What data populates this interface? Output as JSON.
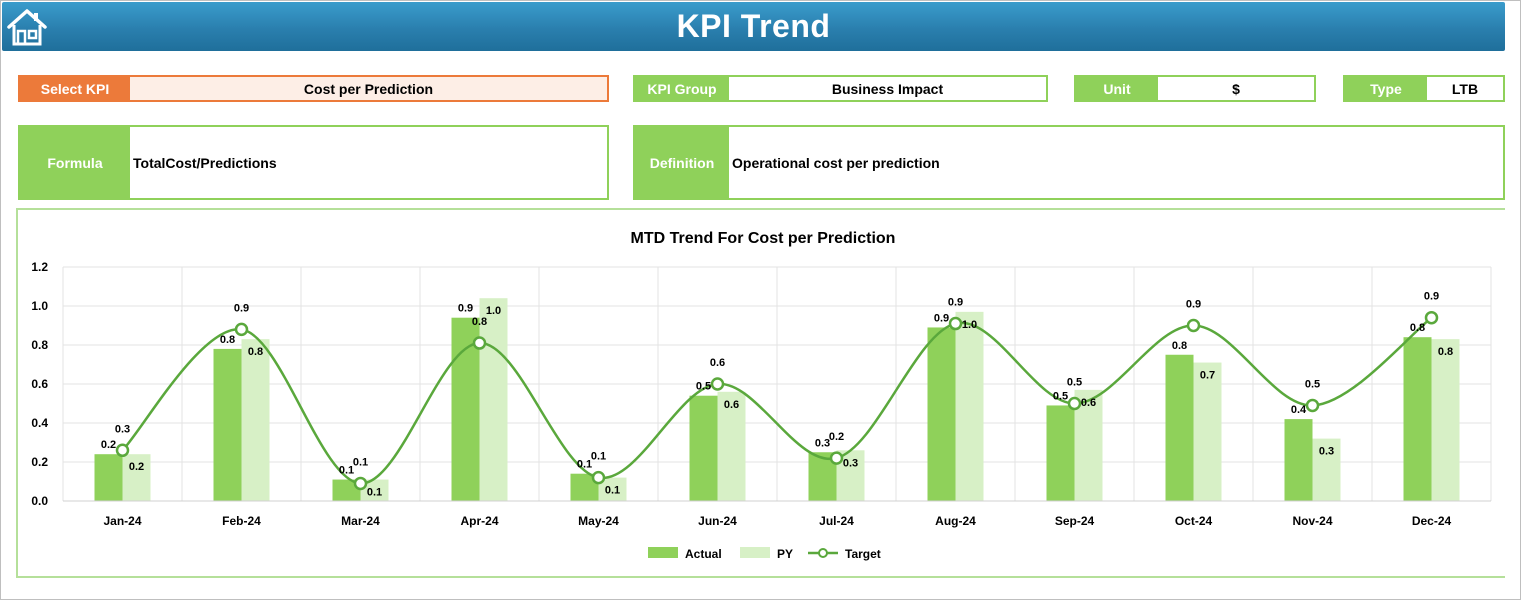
{
  "header": {
    "title": "KPI Trend",
    "home_icon": "home-icon"
  },
  "fields": {
    "select_kpi": {
      "label": "Select KPI",
      "value": "Cost per Prediction"
    },
    "kpi_group": {
      "label": "KPI Group",
      "value": "Business Impact"
    },
    "unit": {
      "label": "Unit",
      "value": "$"
    },
    "type": {
      "label": "Type",
      "value": "LTB"
    },
    "formula": {
      "label": "Formula",
      "value": "TotalCost/Predictions"
    },
    "definition": {
      "label": "Definition",
      "value": "Operational cost per prediction"
    }
  },
  "colors": {
    "accent": "#8fd15a",
    "select": "#ec7a3a",
    "header": "#2a7fae",
    "actual": "#8fd15a",
    "py": "#d7f0c6",
    "target": "#5aa83c"
  },
  "chart_data": {
    "type": "bar",
    "title": "MTD Trend For Cost per Prediction",
    "categories": [
      "Jan-24",
      "Feb-24",
      "Mar-24",
      "Apr-24",
      "May-24",
      "Jun-24",
      "Jul-24",
      "Aug-24",
      "Sep-24",
      "Oct-24",
      "Nov-24",
      "Dec-24"
    ],
    "series": [
      {
        "name": "Actual",
        "values": [
          0.24,
          0.78,
          0.11,
          0.94,
          0.14,
          0.54,
          0.25,
          0.89,
          0.49,
          0.75,
          0.42,
          0.84
        ]
      },
      {
        "name": "PY",
        "values": [
          0.24,
          0.83,
          0.11,
          1.04,
          0.12,
          0.56,
          0.26,
          0.97,
          0.57,
          0.71,
          0.32,
          0.83
        ]
      },
      {
        "name": "Target",
        "type": "line",
        "values": [
          0.26,
          0.88,
          0.09,
          0.81,
          0.12,
          0.6,
          0.22,
          0.91,
          0.5,
          0.9,
          0.49,
          0.94
        ]
      }
    ],
    "labels": {
      "Actual": [
        "0.2",
        "0.8",
        "0.1",
        "0.9",
        "0.1",
        "0.5",
        "0.3",
        "0.9",
        "0.5",
        "0.8",
        "0.4",
        "0.8"
      ],
      "PY": [
        "0.2",
        "0.8",
        "0.1",
        "1.0",
        "0.1",
        "0.6",
        "0.3",
        "1.0",
        "0.6",
        "0.7",
        "0.3",
        "0.8"
      ],
      "Target": [
        "0.3",
        "0.9",
        "0.1",
        "0.8",
        "0.1",
        "0.6",
        "0.2",
        "0.9",
        "0.5",
        "0.9",
        "0.5",
        "0.9"
      ]
    },
    "yticks": [
      "0.0",
      "0.2",
      "0.4",
      "0.6",
      "0.8",
      "1.0",
      "1.2"
    ],
    "ylim": [
      0,
      1.2
    ],
    "grid": true,
    "legend": "bottom"
  }
}
